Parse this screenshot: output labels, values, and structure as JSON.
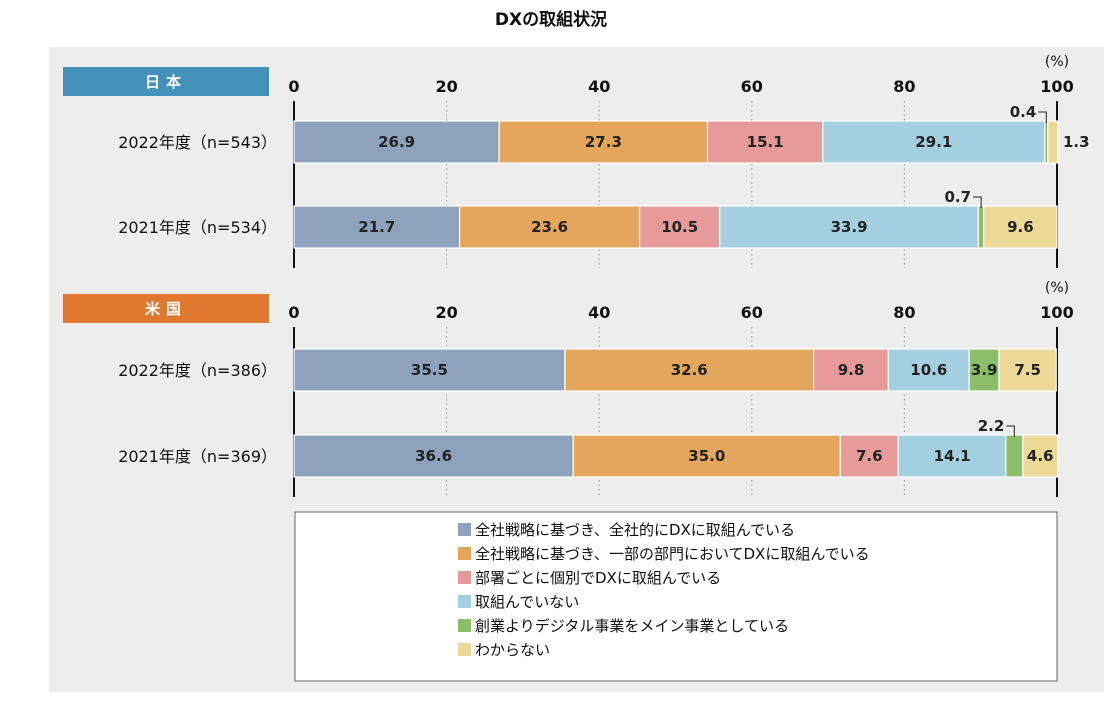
{
  "chart_data": {
    "type": "bar",
    "orientation": "horizontal",
    "stacked": true,
    "title": "DXの取組状況",
    "unit_label": "(%)",
    "xlim": [
      0,
      100
    ],
    "ticks": [
      0,
      20,
      40,
      60,
      80,
      100
    ],
    "series_names": [
      "全社戦略に基づき、全社的にDXに取組んでいる",
      "全社戦略に基づき、一部の部門においてDXに取組んでいる",
      "部署ごとに個別でDXに取組んでいる",
      "取組んでいない",
      "創業よりデジタル事業をメイン事業としている",
      "わからない"
    ],
    "colors": [
      "#8ea2bd",
      "#e4a55d",
      "#e69a9a",
      "#a3cfe0",
      "#8cbd68",
      "#ecd998"
    ],
    "groups": [
      {
        "name": "日本",
        "badge_color": "#4390b8",
        "rows": [
          {
            "label": "2022年度（n=543）",
            "values": [
              26.9,
              27.3,
              15.1,
              29.1,
              0.4,
              1.3
            ]
          },
          {
            "label": "2021年度（n=534）",
            "values": [
              21.7,
              23.6,
              10.5,
              33.9,
              0.7,
              9.6
            ]
          }
        ]
      },
      {
        "name": "米国",
        "badge_color": "#e0782f",
        "rows": [
          {
            "label": "2022年度（n=386）",
            "values": [
              35.5,
              32.6,
              9.8,
              10.6,
              3.9,
              7.5
            ]
          },
          {
            "label": "2021年度（n=369）",
            "values": [
              36.6,
              35.0,
              7.6,
              14.1,
              2.2,
              4.6
            ]
          }
        ]
      }
    ]
  }
}
